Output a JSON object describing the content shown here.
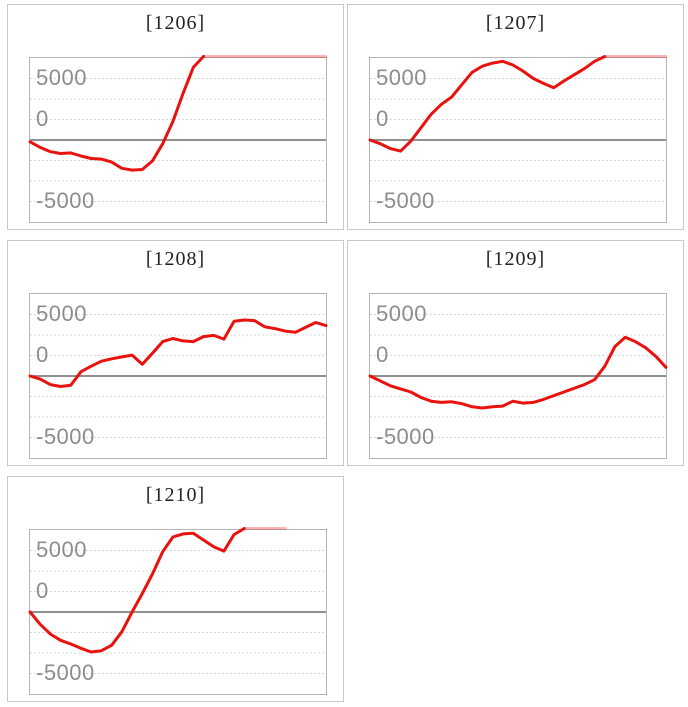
{
  "page": {
    "background_color": "#ffffff"
  },
  "style": {
    "line_color": "#e8120e",
    "clipped_line_opacity": 0.3,
    "grid_color": "#d8d8d8",
    "zero_line_color": "#8f8f8f",
    "plot_border_color": "#b5b5b5",
    "panel_border_color": "#c9c9c9",
    "label_color": "#8c8c8c",
    "title_color": "#222222"
  },
  "chart_data": [
    {
      "type": "line",
      "id": "1206",
      "title": "[1206]",
      "color": "#e8120e",
      "clipped_opacity": 0.3,
      "x_slots": 30,
      "y_axis": {
        "tick_labels": [
          "5000",
          "0",
          "-5000"
        ],
        "tick_values": [
          5000,
          0,
          -5000
        ],
        "ylim": [
          -6800,
          6800
        ],
        "zero_line": true,
        "gridlines": "dotted"
      },
      "values": [
        -150,
        -600,
        -950,
        -1100,
        -1050,
        -1300,
        -1500,
        -1550,
        -1800,
        -2300,
        -2450,
        -2400,
        -1700,
        -300,
        1500,
        3800,
        5900,
        7000,
        7000,
        7000,
        7000,
        7000,
        7000,
        7000,
        7000,
        7000,
        7000,
        7000,
        7000,
        7000
      ]
    },
    {
      "type": "line",
      "id": "1207",
      "title": "[1207]",
      "color": "#e8120e",
      "clipped_opacity": 0.3,
      "x_slots": 30,
      "y_axis": {
        "tick_labels": [
          "5000",
          "0",
          "-5000"
        ],
        "tick_values": [
          5000,
          0,
          -5000
        ],
        "ylim": [
          -6800,
          6800
        ],
        "zero_line": true,
        "gridlines": "dotted"
      },
      "values": [
        0,
        -300,
        -700,
        -900,
        -100,
        1000,
        2100,
        2900,
        3500,
        4500,
        5500,
        6000,
        6250,
        6400,
        6100,
        5600,
        5000,
        4600,
        4250,
        4800,
        5300,
        5800,
        6400,
        7000,
        7000,
        7000,
        7000,
        7000,
        7000,
        7000
      ]
    },
    {
      "type": "line",
      "id": "1208",
      "title": "[1208]",
      "color": "#e8120e",
      "clipped_opacity": 0.3,
      "x_slots": 30,
      "y_axis": {
        "tick_labels": [
          "5000",
          "0",
          "-5000"
        ],
        "tick_values": [
          5000,
          0,
          -5000
        ],
        "ylim": [
          -6800,
          6800
        ],
        "zero_line": true,
        "gridlines": "dotted"
      },
      "values": [
        0,
        -250,
        -700,
        -850,
        -750,
        350,
        800,
        1200,
        1400,
        1550,
        1700,
        950,
        1850,
        2800,
        3050,
        2850,
        2800,
        3200,
        3300,
        3000,
        4450,
        4550,
        4500,
        4000,
        3850,
        3650,
        3550,
        3950,
        4350,
        4100
      ]
    },
    {
      "type": "line",
      "id": "1209",
      "title": "[1209]",
      "color": "#e8120e",
      "clipped_opacity": 0.3,
      "x_slots": 30,
      "y_axis": {
        "tick_labels": [
          "5000",
          "0",
          "-5000"
        ],
        "tick_values": [
          5000,
          0,
          -5000
        ],
        "ylim": [
          -6800,
          6800
        ],
        "zero_line": true,
        "gridlines": "dotted"
      },
      "values": [
        0,
        -400,
        -800,
        -1050,
        -1300,
        -1750,
        -2050,
        -2150,
        -2100,
        -2250,
        -2500,
        -2600,
        -2500,
        -2450,
        -2050,
        -2200,
        -2150,
        -1900,
        -1600,
        -1300,
        -1000,
        -700,
        -300,
        800,
        2400,
        3150,
        2800,
        2300,
        1600,
        700
      ]
    },
    {
      "type": "line",
      "id": "1210",
      "title": "[1210]",
      "color": "#e8120e",
      "clipped_opacity": 0.3,
      "x_slots": 30,
      "y_axis": {
        "tick_labels": [
          "5000",
          "0",
          "-5000"
        ],
        "tick_values": [
          5000,
          0,
          -5000
        ],
        "ylim": [
          -6800,
          6800
        ],
        "zero_line": true,
        "gridlines": "dotted"
      },
      "values": [
        0,
        -1000,
        -1800,
        -2300,
        -2600,
        -2950,
        -3250,
        -3150,
        -2700,
        -1600,
        0,
        1500,
        3100,
        4900,
        6100,
        6350,
        6400,
        5850,
        5300,
        4950,
        6300,
        6900,
        7000,
        7000,
        7000,
        7000
      ]
    }
  ]
}
